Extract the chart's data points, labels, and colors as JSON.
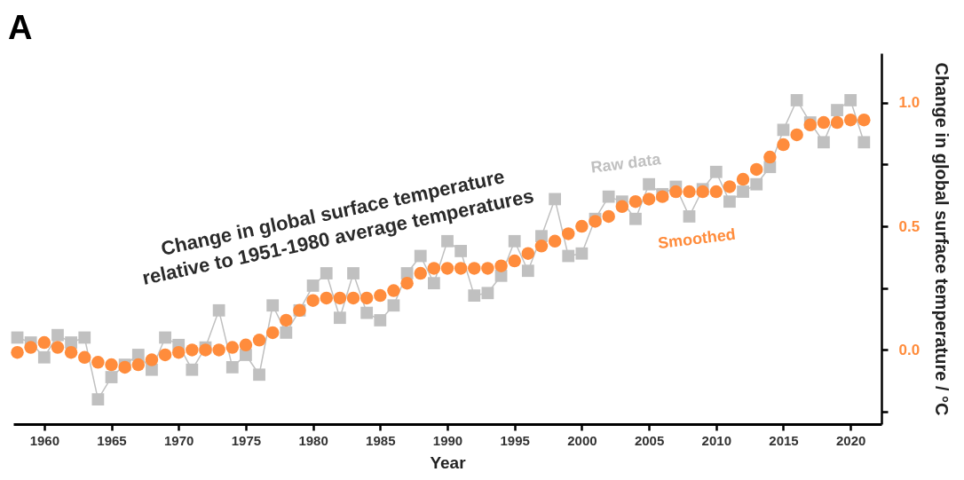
{
  "chart_data": {
    "type": "line",
    "title": "A",
    "xlabel": "Year",
    "ylabel": "Change in global surface temperature / °C",
    "x": [
      1958,
      1959,
      1960,
      1961,
      1962,
      1963,
      1964,
      1965,
      1966,
      1967,
      1968,
      1969,
      1970,
      1971,
      1972,
      1973,
      1974,
      1975,
      1976,
      1977,
      1978,
      1979,
      1980,
      1981,
      1982,
      1983,
      1984,
      1985,
      1986,
      1987,
      1988,
      1989,
      1990,
      1991,
      1992,
      1993,
      1994,
      1995,
      1996,
      1997,
      1998,
      1999,
      2000,
      2001,
      2002,
      2003,
      2004,
      2005,
      2006,
      2007,
      2008,
      2009,
      2010,
      2011,
      2012,
      2013,
      2014,
      2015,
      2016,
      2017,
      2018,
      2019,
      2020,
      2021
    ],
    "series": [
      {
        "name": "Raw data",
        "marker": "square",
        "color": "#c0c0c0",
        "values": [
          0.05,
          0.03,
          -0.03,
          0.06,
          0.03,
          0.05,
          -0.2,
          -0.11,
          -0.06,
          -0.02,
          -0.08,
          0.05,
          0.02,
          -0.08,
          0.01,
          0.16,
          -0.07,
          -0.02,
          -0.1,
          0.18,
          0.07,
          0.16,
          0.26,
          0.31,
          0.13,
          0.31,
          0.15,
          0.12,
          0.18,
          0.31,
          0.38,
          0.27,
          0.44,
          0.4,
          0.22,
          0.23,
          0.3,
          0.44,
          0.32,
          0.46,
          0.61,
          0.38,
          0.39,
          0.53,
          0.62,
          0.6,
          0.53,
          0.67,
          0.63,
          0.66,
          0.54,
          0.65,
          0.72,
          0.6,
          0.64,
          0.67,
          0.74,
          0.89,
          1.01,
          0.92,
          0.84,
          0.97,
          1.01,
          0.84
        ]
      },
      {
        "name": "Smoothed",
        "type": "scatter",
        "marker": "circle",
        "color": "#ff8c3c",
        "values": [
          -0.01,
          0.01,
          0.03,
          0.01,
          -0.01,
          -0.03,
          -0.05,
          -0.06,
          -0.07,
          -0.06,
          -0.04,
          -0.02,
          -0.01,
          0.0,
          0.0,
          0.0,
          0.01,
          0.02,
          0.04,
          0.07,
          0.12,
          0.16,
          0.2,
          0.21,
          0.21,
          0.21,
          0.21,
          0.22,
          0.24,
          0.27,
          0.31,
          0.33,
          0.33,
          0.33,
          0.33,
          0.33,
          0.34,
          0.36,
          0.39,
          0.42,
          0.44,
          0.47,
          0.5,
          0.52,
          0.54,
          0.58,
          0.6,
          0.61,
          0.62,
          0.64,
          0.64,
          0.64,
          0.64,
          0.66,
          0.69,
          0.73,
          0.78,
          0.83,
          0.87,
          0.91,
          0.92,
          0.92,
          0.93,
          0.93
        ]
      }
    ],
    "xlim": [
      1957.7,
      2022.3
    ],
    "xticks": [
      1960,
      1965,
      1970,
      1975,
      1980,
      1985,
      1990,
      1995,
      2000,
      2005,
      2010,
      2015,
      2020
    ],
    "ylim": [
      -0.3,
      1.2
    ],
    "yticks": [
      {
        "value": -0.25,
        "label": null
      },
      {
        "value": 0,
        "label": "0.0"
      },
      {
        "value": 0.25,
        "label": null
      },
      {
        "value": 0.5,
        "label": "0.5"
      },
      {
        "value": 0.75,
        "label": null
      },
      {
        "value": 1.0,
        "label": "1.0"
      }
    ],
    "annotations": [
      "Change in global surface temperature\nrelative to 1951-1980 average temperatures"
    ],
    "grid": false,
    "legend": false
  }
}
